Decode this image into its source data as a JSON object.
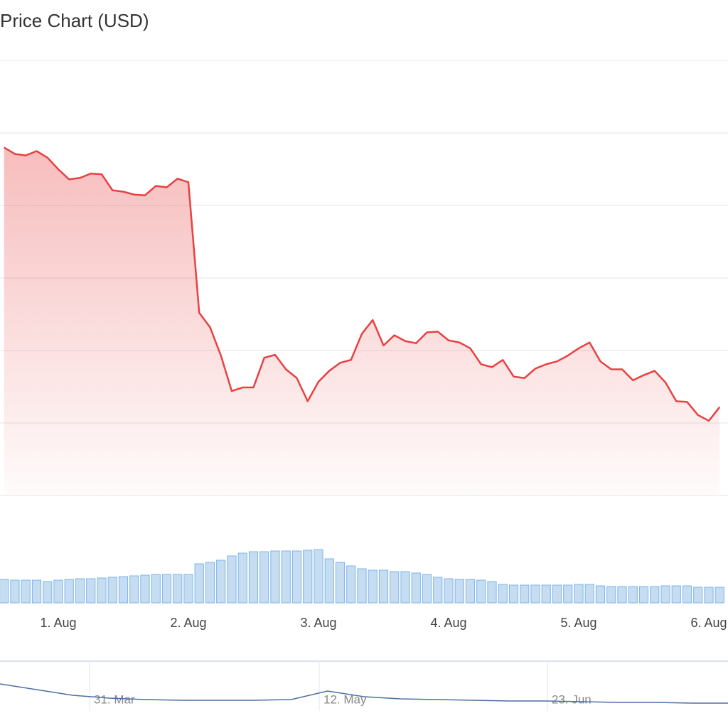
{
  "chart_data": {
    "type": "line",
    "title": "Price Chart (USD)",
    "x": [
      -10,
      -8,
      -6,
      -4,
      -2,
      0,
      2,
      4,
      6,
      8,
      10,
      12,
      14,
      16,
      18,
      20,
      22,
      24,
      26,
      28,
      30,
      32,
      34,
      36,
      38,
      40,
      42,
      44,
      46,
      48,
      50,
      52,
      54,
      56,
      58,
      60,
      62,
      64,
      66,
      68,
      70,
      72,
      74,
      76,
      78,
      80,
      82,
      84,
      86,
      88,
      90,
      92,
      94,
      96,
      98,
      100,
      102,
      104,
      106,
      108,
      110,
      112,
      114,
      116,
      118,
      120,
      122
    ],
    "xlim": [
      -10.75,
      123.54
    ],
    "xticks": [
      {
        "value": 0,
        "label": "1. Aug"
      },
      {
        "value": 24,
        "label": "2. Aug"
      },
      {
        "value": 48,
        "label": "3. Aug"
      },
      {
        "value": 72,
        "label": "4. Aug"
      },
      {
        "value": 96,
        "label": "5. Aug"
      },
      {
        "value": 120,
        "label": "6. Aug"
      }
    ],
    "ylim": [
      0,
      600
    ],
    "yticks": [
      0,
      100,
      200,
      300,
      400,
      500,
      600
    ],
    "grid": true,
    "y2lim": [
      0,
      100
    ],
    "series": [
      {
        "color": "#e84142",
        "values": [
          480,
          471,
          469,
          475,
          466,
          450,
          436,
          438,
          444,
          443,
          421,
          419,
          415,
          414,
          427,
          425,
          437,
          432,
          252,
          232,
          193,
          144,
          149,
          149,
          190,
          194,
          174,
          162,
          130,
          157,
          172,
          183,
          187,
          223,
          242,
          207,
          221,
          213,
          210,
          225,
          226,
          214,
          211,
          203,
          181,
          177,
          187,
          164,
          162,
          175,
          181,
          185,
          193,
          203,
          211,
          185,
          174,
          174,
          159,
          166,
          172,
          156,
          130,
          129,
          111,
          103,
          122
        ]
      },
      {
        "type": "column",
        "axis": "y2",
        "color": "#7cb5ec",
        "values": [
          33,
          32,
          32,
          32,
          30,
          32,
          33,
          34,
          34,
          35,
          36,
          37,
          38,
          39,
          40,
          40,
          40,
          40,
          55,
          57,
          60,
          66,
          70,
          72,
          72,
          73,
          73,
          73,
          74,
          75,
          62,
          57,
          52,
          48,
          46,
          46,
          44,
          44,
          42,
          40,
          36,
          34,
          33,
          33,
          32,
          30,
          26,
          25,
          25,
          25,
          25,
          25,
          25,
          26,
          26,
          24,
          23,
          23,
          23,
          23,
          23,
          24,
          24,
          24,
          22,
          22,
          22
        ]
      }
    ],
    "navigator": {
      "labels": [
        "31. Mar",
        "12. May",
        "23. Jun"
      ],
      "ylim": [
        0,
        70
      ],
      "color": "#4a6fa5",
      "values": [
        38,
        30,
        22,
        18,
        16,
        15,
        15,
        15,
        16,
        28,
        20,
        17,
        16,
        15,
        14,
        14,
        13,
        12,
        12,
        11,
        11
      ]
    }
  }
}
